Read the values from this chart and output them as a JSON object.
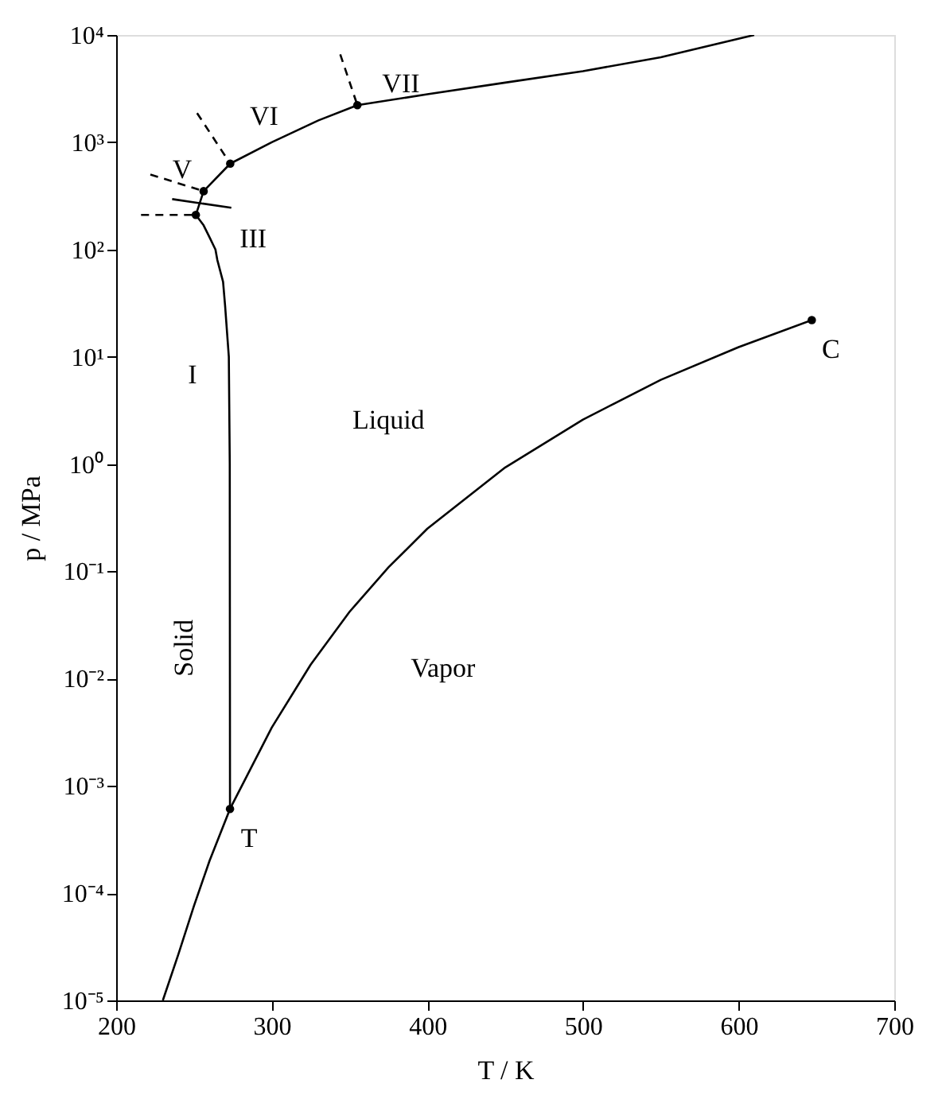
{
  "chart_data": {
    "type": "line",
    "xlabel": "T / K",
    "ylabel": "p / MPa",
    "log": "y",
    "grid": false,
    "xlim": [
      200,
      700
    ],
    "xticks": [
      200,
      300,
      400,
      500,
      600,
      700
    ],
    "ylim": [
      1e-05,
      10000
    ],
    "yticks": [
      {
        "value": 1e-05,
        "label": "10⁻⁵"
      },
      {
        "value": 0.0001,
        "label": "10⁻⁴"
      },
      {
        "value": 0.001,
        "label": "10⁻³"
      },
      {
        "value": 0.01,
        "label": "10⁻²"
      },
      {
        "value": 0.1,
        "label": "10⁻¹"
      },
      {
        "value": 1,
        "label": "10⁰"
      },
      {
        "value": 10,
        "label": "10¹"
      },
      {
        "value": 100,
        "label": "10²"
      },
      {
        "value": 1000,
        "label": "10³"
      },
      {
        "value": 10000,
        "label": "10⁴"
      }
    ],
    "series": [
      {
        "type": "line",
        "color": "#000000",
        "line_style": "solid",
        "x": [
          230,
          240,
          250,
          260,
          273.16,
          300,
          325,
          350,
          375,
          400,
          450,
          500,
          550,
          600,
          647
        ],
        "values": [
          1e-05,
          2.7e-05,
          7.6e-05,
          0.0002,
          0.00061,
          0.0035,
          0.0135,
          0.042,
          0.109,
          0.25,
          0.93,
          2.6,
          6.1,
          12.3,
          22
        ]
      },
      {
        "type": "line",
        "color": "#000000",
        "line_style": "solid",
        "x": [
          273.16,
          273.1,
          273,
          272.4,
          270,
          268.7,
          265,
          263.8,
          260,
          256,
          251.2
        ],
        "values": [
          0.00061,
          0.01,
          1,
          10,
          30,
          50,
          80,
          100,
          130,
          170,
          210
        ]
      },
      {
        "type": "line",
        "color": "#000000",
        "line_style": "solid",
        "x": [
          251.2,
          256.2,
          273.3,
          300,
          330,
          355,
          400,
          450,
          500,
          550,
          610
        ],
        "values": [
          210,
          350,
          632,
          1000,
          1600,
          2216,
          2800,
          3600,
          4600,
          6200,
          10000
        ]
      },
      {
        "type": "line",
        "color": "#000000",
        "line_style": "solid",
        "x": [
          236,
          274
        ],
        "values": [
          295,
          245
        ]
      },
      {
        "type": "line",
        "color": "#000000",
        "line_style": "dashed",
        "x": [
          216,
          251.2
        ],
        "values": [
          210,
          210
        ]
      },
      {
        "type": "line",
        "color": "#000000",
        "line_style": "dashed",
        "x": [
          222,
          256.2
        ],
        "values": [
          500,
          350
        ]
      },
      {
        "type": "line",
        "color": "#000000",
        "line_style": "dashed",
        "x": [
          252,
          273.3
        ],
        "values": [
          1870,
          632
        ]
      },
      {
        "type": "line",
        "color": "#000000",
        "line_style": "dashed",
        "x": [
          344,
          355
        ],
        "values": [
          6600,
          2216
        ]
      },
      {
        "type": "scatter",
        "color": "#000000",
        "marker": "circle",
        "x": [
          273.16,
          647,
          251.2,
          256.2,
          273.3,
          355
        ],
        "values": [
          0.00061,
          22,
          210,
          350,
          632,
          2216
        ]
      }
    ],
    "annotations": [
      "VII",
      "VI",
      "V",
      "III",
      "I",
      "Liquid",
      "Solid",
      "Vapor",
      {
        "text": "T",
        "x": 273.16,
        "y": 0.00061
      },
      {
        "text": "C",
        "x": 647,
        "y": 22
      }
    ]
  }
}
